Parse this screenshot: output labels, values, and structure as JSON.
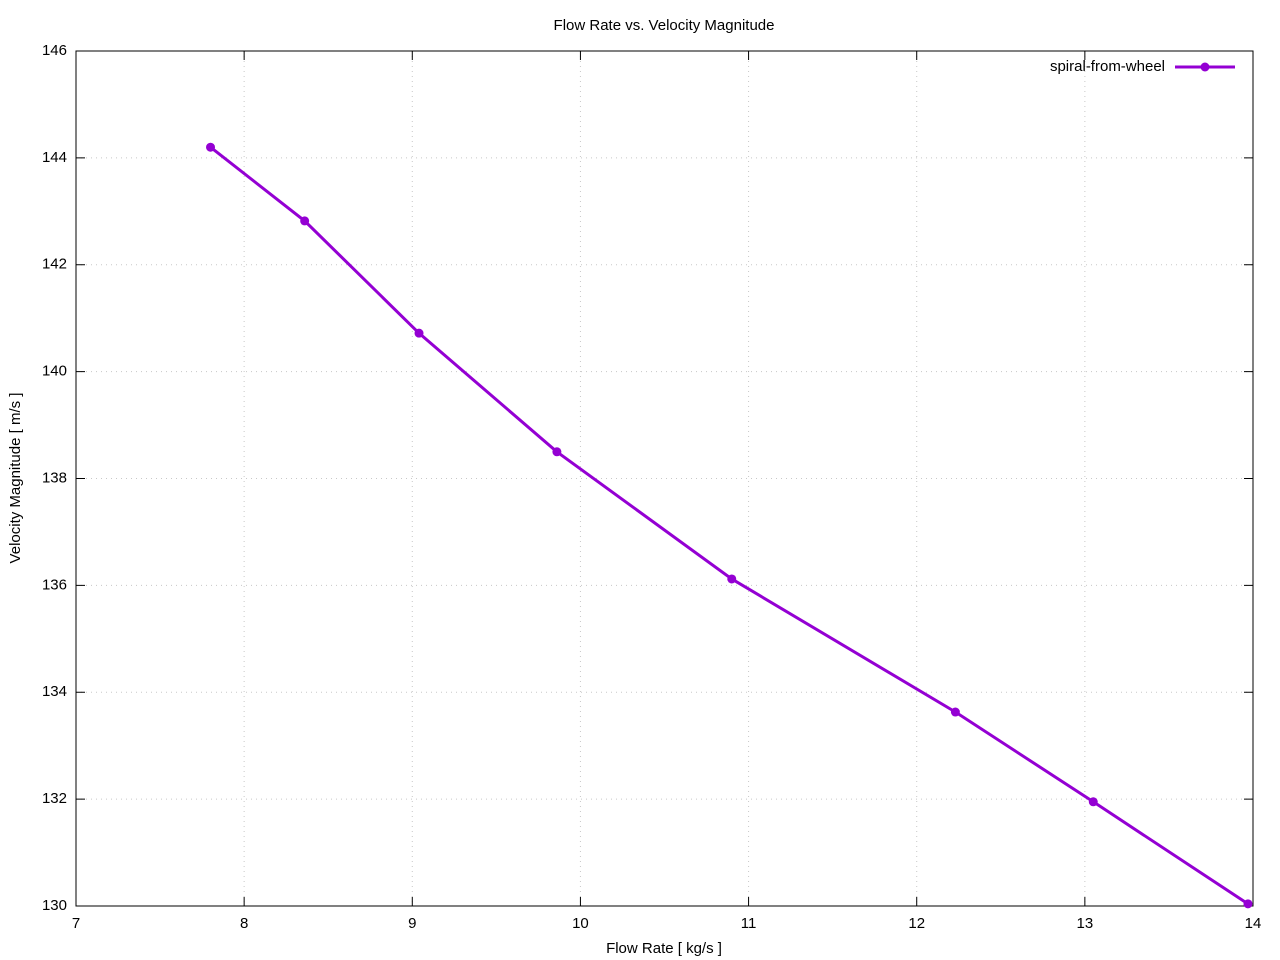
{
  "chart_data": {
    "type": "line",
    "title": "Flow Rate vs. Velocity Magnitude",
    "x_label": "Flow Rate [ kg/s ]",
    "y_label": "Velocity Magnitude [ m/s ]",
    "x": [
      7.8,
      8.36,
      9.04,
      9.86,
      10.9,
      12.23,
      13.05,
      13.97
    ],
    "series": [
      {
        "name": "spiral-from-wheel",
        "color": "#9400d3",
        "values": [
          144.2,
          142.82,
          140.72,
          138.5,
          136.12,
          133.63,
          131.95,
          130.04
        ]
      }
    ],
    "xlim": [
      7,
      14
    ],
    "xticks": [
      7,
      8,
      9,
      10,
      11,
      12,
      13,
      14
    ],
    "ylim": [
      130,
      146
    ],
    "yticks": [
      130,
      132,
      134,
      136,
      138,
      140,
      142,
      144,
      146
    ],
    "grid": true,
    "legend": "top-right"
  }
}
